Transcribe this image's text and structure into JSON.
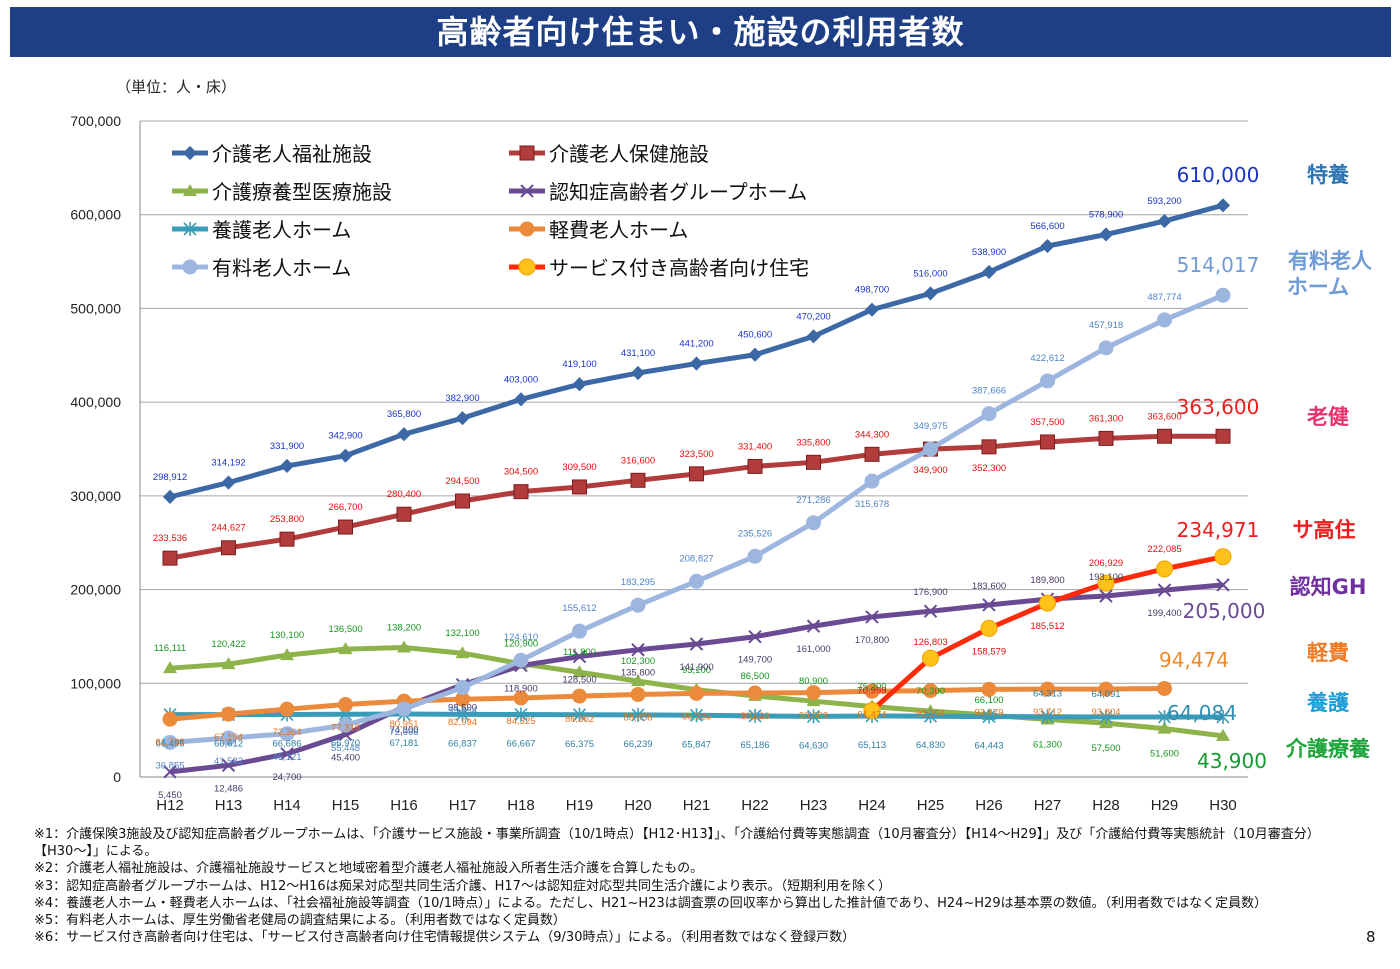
{
  "title": "高齢者向け住まい・施設の利用者数",
  "unit_label": "（単位：人・床）",
  "page_number": "8",
  "notes": [
    "※1：介護保険3施設及び認知症高齢者グループホームは、「介護サービス施設・事業所調査（10/1時点）【H12･H13】」、「介護給付費等実態調査（10月審査分）【H14～H29】」及び「介護給付費等実態統計（10月審査分）",
    "【H30～】」による。",
    "※2：介護老人福祉施設は、介護福祉施設サービスと地域密着型介護老人福祉施設入所者生活介護を合算したもの。",
    "※3：認知症高齢者グループホームは、H12～H16は痴呆対応型共同生活介護、H17～は認知症対応型共同生活介護により表示。（短期利用を除く）",
    "※4：養護老人ホーム・軽費老人ホームは、「社会福祉施設等調査（10/1時点）」による。ただし、H21~H23は調査票の回収率から算出した推計値であり、H24~H29は基本票の数値。（利用者数ではなく定員数）",
    "※5：有料老人ホームは、厚生労働省老健局の調査結果による。（利用者数ではなく定員数）",
    "※6：サービス付き高齢者向け住宅は、「サービス付き高齢者向け住宅情報提供システム（9/30時点）」による。（利用者数ではなく登録戸数）"
  ],
  "chart_data": {
    "type": "line",
    "title": "高齢者向け住まい・施設の利用者数",
    "ylabel": "（単位：人・床）",
    "ylim": [
      0,
      700000
    ],
    "yticks": [
      "0",
      "100,000",
      "200,000",
      "300,000",
      "400,000",
      "500,000",
      "600,000",
      "700,000"
    ],
    "categories": [
      "H12",
      "H13",
      "H14",
      "H15",
      "H16",
      "H17",
      "H18",
      "H19",
      "H20",
      "H21",
      "H22",
      "H23",
      "H24",
      "H25",
      "H26",
      "H27",
      "H28",
      "H29",
      "H30"
    ],
    "legend_placement": "top-left",
    "grid": "horizontal",
    "series": [
      {
        "name": "介護老人福祉施設",
        "color": "#3d68a6",
        "marker": "diamond",
        "side_label": "特養",
        "side_color": "#2e75b6",
        "end_label": "610,000",
        "end_color": "#1a35c4",
        "values": [
          298912,
          314192,
          331900,
          342900,
          365800,
          382900,
          403000,
          419100,
          431100,
          441200,
          450600,
          470200,
          498700,
          516000,
          538900,
          566600,
          578900,
          593200,
          610000
        ],
        "labels": [
          "298,912",
          "314,192",
          "331,900",
          "342,900",
          "365,800",
          "382,900",
          "403,000",
          "419,100",
          "431,100",
          "441,200",
          "450,600",
          "470,200",
          "498,700",
          "516,000",
          "538,900",
          "566,600",
          "578,900",
          "593,200",
          ""
        ],
        "label_color": "#1a35c4"
      },
      {
        "name": "介護老人保健施設",
        "color": "#b23c3c",
        "marker": "square",
        "side_label": "老健",
        "side_color": "#e8336d",
        "end_label": "363,600",
        "end_color": "#ee1c1c",
        "values": [
          233536,
          244627,
          253800,
          266700,
          280400,
          294500,
          304500,
          309500,
          316600,
          323500,
          331400,
          335800,
          344300,
          349900,
          352300,
          357500,
          361300,
          363600,
          363600
        ],
        "labels": [
          "233,536",
          "244,627",
          "253,800",
          "266,700",
          "280,400",
          "294,500",
          "304,500",
          "309,500",
          "316,600",
          "323,500",
          "331,400",
          "335,800",
          "344,300",
          "349,900",
          "352,300",
          "357,500",
          "361,300",
          "363,600",
          ""
        ],
        "label_color": "#e01010"
      },
      {
        "name": "介護療養型医療施設",
        "color": "#8db34a",
        "marker": "triangle",
        "side_label": "介護療養",
        "side_color": "#1fa53c",
        "end_label": "43,900",
        "end_color": "#129b2e",
        "values": [
          116111,
          120422,
          130100,
          136500,
          138200,
          132100,
          120900,
          111800,
          102300,
          93100,
          86500,
          80900,
          75200,
          70300,
          66100,
          61300,
          57500,
          51600,
          43900
        ],
        "labels": [
          "116,111",
          "120,422",
          "130,100",
          "136,500",
          "138,200",
          "132,100",
          "120,900",
          "111,800",
          "102,300",
          "93,100",
          "86,500",
          "80,900",
          "75,200",
          "70,300",
          "66,100",
          "61,300",
          "57,500",
          "51,600",
          ""
        ],
        "label_color": "#16961f"
      },
      {
        "name": "認知症高齢者グループホーム",
        "color": "#6a4a93",
        "marker": "x",
        "side_label": "認知GH",
        "side_color": "#7030a0",
        "end_label": "205,000",
        "end_color": "#6a4a93",
        "values": [
          5450,
          12486,
          24700,
          45400,
          74800,
          98500,
          118900,
          128500,
          135800,
          141900,
          149700,
          161000,
          170800,
          176900,
          183600,
          189800,
          193100,
          199400,
          205000
        ],
        "labels": [
          "5,450",
          "12,486",
          "24,700",
          "45,400",
          "74,800",
          "98,500",
          "118,900",
          "128,500",
          "135,800",
          "141,900",
          "149,700",
          "161,000",
          "170,800",
          "176,900",
          "183,600",
          "189,800",
          "193,100",
          "199,400",
          ""
        ],
        "label_color": "#4a3a6a"
      },
      {
        "name": "養護老人ホーム",
        "color": "#3a9cb8",
        "marker": "asterisk",
        "side_label": "養護",
        "side_color": "#1f9ed8",
        "end_label": "64,084",
        "end_color": "#2f8fb3",
        "values": [
          66495,
          66612,
          66686,
          66970,
          67181,
          66837,
          66667,
          66375,
          66239,
          65847,
          65186,
          64630,
          65113,
          64830,
          64443,
          64313,
          64091,
          64084,
          64084
        ],
        "labels": [
          "66,495",
          "66,612",
          "66,686",
          "66,970",
          "67,181",
          "66,837",
          "66,667",
          "66,375",
          "66,239",
          "65,847",
          "65,186",
          "64,630",
          "65,113",
          "64,830",
          "64,443",
          "64,313",
          "64,091",
          "",
          ""
        ],
        "label_color": "#2f7fa3"
      },
      {
        "name": "軽費老人ホーム",
        "color": "#ec8a3c",
        "marker": "circle",
        "side_label": "軽費",
        "side_color": "#ec7c28",
        "end_label": "94,474",
        "end_color": "#ee8a2c",
        "values": [
          61733,
          67154,
          72364,
          77316,
          80951,
          82994,
          84325,
          86362,
          88058,
          89225,
          89628,
          90098,
          91474,
          92204,
          93479,
          93712,
          93804,
          94474,
          null
        ],
        "labels": [
          "61,733",
          "67,154",
          "72,364",
          "77,316",
          "80,951",
          "82,994",
          "84,325",
          "86,362",
          "88,058",
          "89,225",
          "89,628",
          "90,098",
          "91,474",
          "92,204",
          "93,479",
          "93,712",
          "93,804",
          "",
          ""
        ],
        "label_color": "#e8731c"
      },
      {
        "name": "有料老人ホーム",
        "color": "#9cb6e0",
        "marker": "circle",
        "side_label": "有料老人ホーム",
        "side_color": "#6f9bd6",
        "end_label": "514,017",
        "end_color": "#6f9bd6",
        "values": [
          36855,
          41582,
          46121,
          55448,
          72668,
          95454,
          124610,
          155612,
          183295,
          208827,
          235526,
          271286,
          315678,
          349975,
          387666,
          422612,
          457918,
          487774,
          514017
        ],
        "labels": [
          "36,855",
          "41,582",
          "46,121",
          "55,448",
          "72,668",
          "95,454",
          "124,610",
          "155,612",
          "183,295",
          "208,827",
          "235,526",
          "271,286",
          "315,678",
          "349,975",
          "387,666",
          "422,612",
          "457,918",
          "487,774",
          ""
        ],
        "label_color": "#4f84c4"
      },
      {
        "name": "サービス付き高齢者向け住宅",
        "color": "#ff2a0a",
        "marker": "yellow-ball",
        "side_label": "サ高住",
        "side_color": "#ee1c1c",
        "end_label": "234,971",
        "end_color": "#ee1c1c",
        "values": [
          null,
          null,
          null,
          null,
          null,
          null,
          null,
          null,
          null,
          null,
          null,
          null,
          70999,
          126803,
          158579,
          185512,
          206929,
          222085,
          234971
        ],
        "labels": [
          "",
          "",
          "",
          "",
          "",
          "",
          "",
          "",
          "",
          "",
          "",
          "",
          "70,999",
          "126,803",
          "158,579",
          "185,512",
          "206,929",
          "222,085",
          ""
        ],
        "label_color": "#e01010"
      }
    ]
  }
}
